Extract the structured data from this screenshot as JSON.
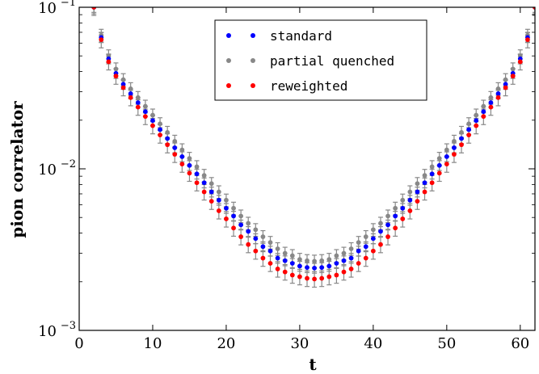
{
  "chart_data": {
    "type": "scatter",
    "xlabel": "t",
    "ylabel": "pion correlator",
    "xlim": [
      0,
      62
    ],
    "ylim": [
      0.001,
      0.1
    ],
    "yscale": "log",
    "x_ticks": [
      0,
      10,
      20,
      30,
      40,
      50,
      60
    ],
    "y_ticks": [
      {
        "value": 0.1,
        "base": "10",
        "exp": "−1"
      },
      {
        "value": 0.01,
        "base": "10",
        "exp": "−2"
      },
      {
        "value": 0.001,
        "base": "10",
        "exp": "−3"
      }
    ],
    "legend_position": "top-center",
    "error_bars": true,
    "t_min_center": 32,
    "series": [
      {
        "name": "standard",
        "color": "#0000ff",
        "error_color": "#888888",
        "x": [
          2,
          3,
          4,
          5,
          6,
          7,
          8,
          9,
          10,
          11,
          12,
          13,
          14,
          15,
          16,
          17,
          18,
          19,
          20,
          21,
          22,
          23,
          24,
          25,
          26,
          27,
          28,
          29,
          30,
          31,
          32,
          33,
          34,
          35,
          36,
          37,
          38,
          39,
          40,
          41,
          42,
          43,
          44,
          45,
          46,
          47,
          48,
          49,
          50,
          51,
          52,
          53,
          54,
          55,
          56,
          57,
          58,
          59,
          60,
          61,
          62
        ],
        "values": [
          0.1,
          0.065,
          0.048,
          0.039,
          0.0334,
          0.0292,
          0.0257,
          0.0226,
          0.0199,
          0.0175,
          0.0154,
          0.0135,
          0.0119,
          0.0105,
          0.0093,
          0.0082,
          0.0072,
          0.0064,
          0.0057,
          0.0051,
          0.0045,
          0.0041,
          0.0037,
          0.0033,
          0.0031,
          0.0028,
          0.0027,
          0.0026,
          0.0025,
          0.00245,
          0.00243,
          0.00245,
          0.0025,
          0.0026,
          0.0027,
          0.0028,
          0.0031,
          0.0033,
          0.0037,
          0.0041,
          0.0045,
          0.0051,
          0.0057,
          0.0064,
          0.0072,
          0.0082,
          0.0093,
          0.0105,
          0.0119,
          0.0135,
          0.0154,
          0.0175,
          0.0199,
          0.0226,
          0.0257,
          0.0292,
          0.0334,
          0.039,
          0.048,
          0.065,
          0.1
        ],
        "error_frac": 0.07
      },
      {
        "name": "partial quenched",
        "color": "#888888",
        "error_color": "#888888",
        "x": [
          2,
          3,
          4,
          5,
          6,
          7,
          8,
          9,
          10,
          11,
          12,
          13,
          14,
          15,
          16,
          17,
          18,
          19,
          20,
          21,
          22,
          23,
          24,
          25,
          26,
          27,
          28,
          29,
          30,
          31,
          32,
          33,
          34,
          35,
          36,
          37,
          38,
          39,
          40,
          41,
          42,
          43,
          44,
          45,
          46,
          47,
          48,
          49,
          50,
          51,
          52,
          53,
          54,
          55,
          56,
          57,
          58,
          59,
          60,
          61,
          62
        ],
        "values": [
          0.1,
          0.067,
          0.05,
          0.0415,
          0.0356,
          0.0313,
          0.0276,
          0.0244,
          0.0215,
          0.019,
          0.0168,
          0.0148,
          0.0131,
          0.0116,
          0.0103,
          0.0091,
          0.0081,
          0.0072,
          0.0064,
          0.0057,
          0.0051,
          0.0046,
          0.0042,
          0.0038,
          0.0035,
          0.0032,
          0.003,
          0.0029,
          0.00275,
          0.0027,
          0.00268,
          0.0027,
          0.00275,
          0.0029,
          0.003,
          0.0032,
          0.0035,
          0.0038,
          0.0042,
          0.0046,
          0.0051,
          0.0057,
          0.0064,
          0.0072,
          0.0081,
          0.0091,
          0.0103,
          0.0116,
          0.0131,
          0.0148,
          0.0168,
          0.019,
          0.0215,
          0.0244,
          0.0276,
          0.0313,
          0.0356,
          0.0415,
          0.05,
          0.067,
          0.1
        ],
        "error_frac": 0.09
      },
      {
        "name": "reweighted",
        "color": "#ff0000",
        "error_color": "#888888",
        "x": [
          2,
          3,
          4,
          5,
          6,
          7,
          8,
          9,
          10,
          11,
          12,
          13,
          14,
          15,
          16,
          17,
          18,
          19,
          20,
          21,
          22,
          23,
          24,
          25,
          26,
          27,
          28,
          29,
          30,
          31,
          32,
          33,
          34,
          35,
          36,
          37,
          38,
          39,
          40,
          41,
          42,
          43,
          44,
          45,
          46,
          47,
          48,
          49,
          50,
          51,
          52,
          53,
          54,
          55,
          56,
          57,
          58,
          59,
          60,
          61,
          62
        ],
        "values": [
          0.1,
          0.063,
          0.046,
          0.0375,
          0.0318,
          0.0276,
          0.0241,
          0.0211,
          0.0185,
          0.0162,
          0.0141,
          0.0123,
          0.0107,
          0.0094,
          0.0082,
          0.0072,
          0.0063,
          0.0055,
          0.0049,
          0.0043,
          0.0038,
          0.0034,
          0.0031,
          0.0028,
          0.0026,
          0.0024,
          0.0023,
          0.0022,
          0.00215,
          0.0021,
          0.00208,
          0.0021,
          0.00215,
          0.0022,
          0.0023,
          0.0024,
          0.0026,
          0.0028,
          0.0031,
          0.0034,
          0.0038,
          0.0043,
          0.0049,
          0.0055,
          0.0063,
          0.0072,
          0.0082,
          0.0094,
          0.0107,
          0.0123,
          0.0141,
          0.0162,
          0.0185,
          0.0211,
          0.0241,
          0.0276,
          0.0318,
          0.0375,
          0.046,
          0.063,
          0.1
        ],
        "error_frac": 0.11
      }
    ]
  }
}
